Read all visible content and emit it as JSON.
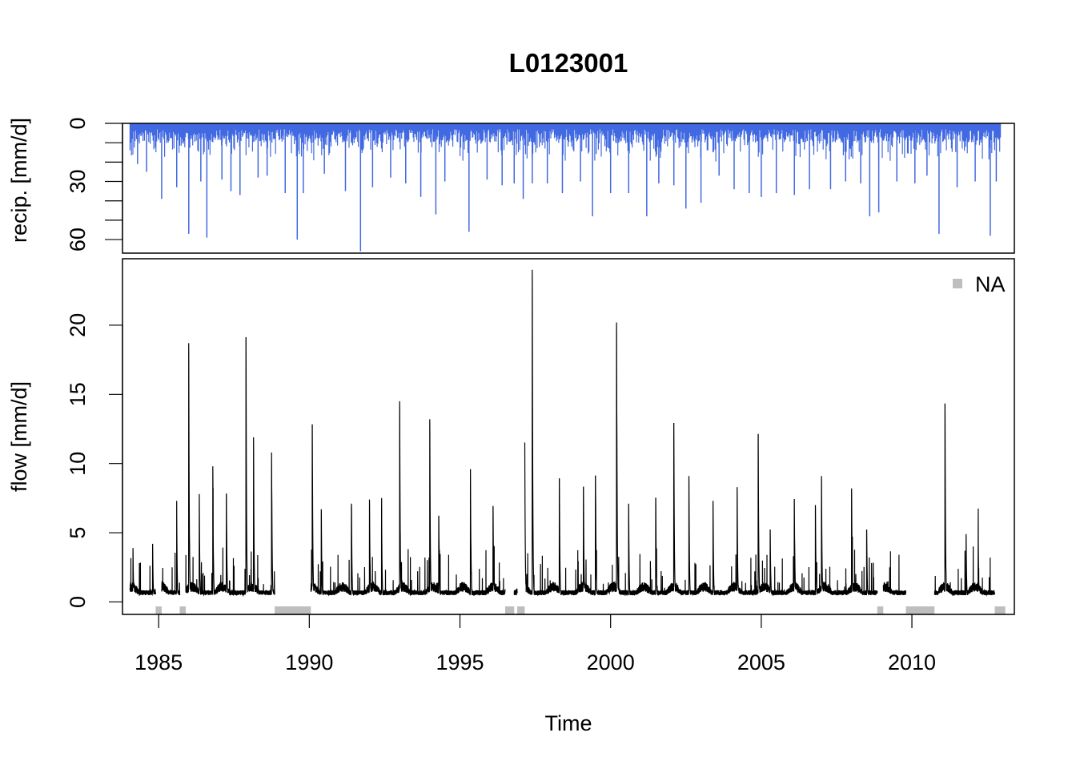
{
  "chart_data": {
    "type": "bar+line",
    "title": "L0123001",
    "xlabel": "Time",
    "x_ticks": [
      1985,
      1990,
      1995,
      2000,
      2005,
      2010
    ],
    "x_range": [
      1983.8,
      2013.4
    ],
    "precipitation": {
      "ylabel": "recip. [mm/d]",
      "y_ticks": [
        0,
        30,
        60
      ],
      "y_minor_ticks": [
        10,
        20,
        40,
        50
      ],
      "y_range_inverted": [
        0,
        67
      ],
      "color": "#4169E1",
      "peaks": [
        {
          "year": 1984.3,
          "value": 21
        },
        {
          "year": 1984.6,
          "value": 25
        },
        {
          "year": 1985.1,
          "value": 39
        },
        {
          "year": 1985.6,
          "value": 33
        },
        {
          "year": 1986.0,
          "value": 57
        },
        {
          "year": 1986.4,
          "value": 30
        },
        {
          "year": 1986.6,
          "value": 59
        },
        {
          "year": 1987.1,
          "value": 29
        },
        {
          "year": 1987.4,
          "value": 35
        },
        {
          "year": 1987.7,
          "value": 37
        },
        {
          "year": 1988.3,
          "value": 28
        },
        {
          "year": 1988.6,
          "value": 27
        },
        {
          "year": 1989.2,
          "value": 36
        },
        {
          "year": 1989.6,
          "value": 60
        },
        {
          "year": 1989.8,
          "value": 36
        },
        {
          "year": 1990.5,
          "value": 26
        },
        {
          "year": 1991.2,
          "value": 35
        },
        {
          "year": 1991.7,
          "value": 66
        },
        {
          "year": 1992.1,
          "value": 33
        },
        {
          "year": 1992.7,
          "value": 28
        },
        {
          "year": 1993.2,
          "value": 31
        },
        {
          "year": 1993.7,
          "value": 38
        },
        {
          "year": 1994.2,
          "value": 47
        },
        {
          "year": 1994.5,
          "value": 30
        },
        {
          "year": 1995.3,
          "value": 56
        },
        {
          "year": 1995.9,
          "value": 29
        },
        {
          "year": 1996.4,
          "value": 32
        },
        {
          "year": 1996.8,
          "value": 31
        },
        {
          "year": 1997.1,
          "value": 39
        },
        {
          "year": 1997.4,
          "value": 31
        },
        {
          "year": 1997.9,
          "value": 31
        },
        {
          "year": 1998.4,
          "value": 36
        },
        {
          "year": 1999.0,
          "value": 30
        },
        {
          "year": 1999.4,
          "value": 48
        },
        {
          "year": 2000.0,
          "value": 36
        },
        {
          "year": 2000.6,
          "value": 36
        },
        {
          "year": 2001.2,
          "value": 48
        },
        {
          "year": 2001.6,
          "value": 31
        },
        {
          "year": 2002.1,
          "value": 32
        },
        {
          "year": 2002.5,
          "value": 44
        },
        {
          "year": 2003.0,
          "value": 41
        },
        {
          "year": 2003.6,
          "value": 27
        },
        {
          "year": 2004.1,
          "value": 34
        },
        {
          "year": 2004.6,
          "value": 36
        },
        {
          "year": 2005.0,
          "value": 38
        },
        {
          "year": 2005.5,
          "value": 36
        },
        {
          "year": 2006.1,
          "value": 37
        },
        {
          "year": 2006.6,
          "value": 34
        },
        {
          "year": 2007.3,
          "value": 34
        },
        {
          "year": 2007.8,
          "value": 30
        },
        {
          "year": 2008.3,
          "value": 31
        },
        {
          "year": 2008.6,
          "value": 48
        },
        {
          "year": 2008.9,
          "value": 46
        },
        {
          "year": 2009.5,
          "value": 30
        },
        {
          "year": 2010.1,
          "value": 31
        },
        {
          "year": 2010.5,
          "value": 27
        },
        {
          "year": 2010.9,
          "value": 57
        },
        {
          "year": 2011.5,
          "value": 33
        },
        {
          "year": 2012.1,
          "value": 30
        },
        {
          "year": 2012.6,
          "value": 58
        },
        {
          "year": 2012.8,
          "value": 30
        }
      ]
    },
    "flow": {
      "ylabel": "flow [mm/d]",
      "y_ticks": [
        0,
        5,
        10,
        15,
        20
      ],
      "y_range": [
        -0.9,
        24.8
      ],
      "color": "#000000",
      "peaks": [
        {
          "year": 1984.15,
          "value": 3.9
        },
        {
          "year": 1984.8,
          "value": 4.2
        },
        {
          "year": 1985.05,
          "value": 6.9
        },
        {
          "year": 1985.6,
          "value": 6.2
        },
        {
          "year": 1986.0,
          "value": 18.7
        },
        {
          "year": 1986.35,
          "value": 7.8
        },
        {
          "year": 1986.8,
          "value": 9.8
        },
        {
          "year": 1987.25,
          "value": 7.8
        },
        {
          "year": 1987.9,
          "value": 19.1
        },
        {
          "year": 1988.15,
          "value": 11.9
        },
        {
          "year": 1988.75,
          "value": 10.8
        },
        {
          "year": 1990.1,
          "value": 12.8
        },
        {
          "year": 1990.4,
          "value": 6.7
        },
        {
          "year": 1991.4,
          "value": 7.1
        },
        {
          "year": 1992.0,
          "value": 7.4
        },
        {
          "year": 1992.4,
          "value": 6.6
        },
        {
          "year": 1993.0,
          "value": 14.5
        },
        {
          "year": 1994.0,
          "value": 13.2
        },
        {
          "year": 1994.3,
          "value": 6.2
        },
        {
          "year": 1995.35,
          "value": 9.6
        },
        {
          "year": 1996.1,
          "value": 6.9
        },
        {
          "year": 1996.6,
          "value": 8.4
        },
        {
          "year": 1997.15,
          "value": 12.5
        },
        {
          "year": 1997.4,
          "value": 24.0
        },
        {
          "year": 1998.3,
          "value": 8.9
        },
        {
          "year": 1999.1,
          "value": 8.3
        },
        {
          "year": 1999.5,
          "value": 9.1
        },
        {
          "year": 2000.2,
          "value": 20.2
        },
        {
          "year": 2000.6,
          "value": 7.1
        },
        {
          "year": 2001.5,
          "value": 7.5
        },
        {
          "year": 2002.1,
          "value": 12.9
        },
        {
          "year": 2002.6,
          "value": 9.1
        },
        {
          "year": 2003.4,
          "value": 7.3
        },
        {
          "year": 2004.2,
          "value": 8.3
        },
        {
          "year": 2004.9,
          "value": 12.1
        },
        {
          "year": 2005.3,
          "value": 5.2
        },
        {
          "year": 2006.1,
          "value": 7.4
        },
        {
          "year": 2006.8,
          "value": 7.0
        },
        {
          "year": 2007.0,
          "value": 9.1
        },
        {
          "year": 2008.0,
          "value": 8.2
        },
        {
          "year": 2008.5,
          "value": 5.2
        },
        {
          "year": 2009.0,
          "value": 4.5
        },
        {
          "year": 2011.1,
          "value": 14.3
        },
        {
          "year": 2011.8,
          "value": 4.9
        },
        {
          "year": 2012.2,
          "value": 5.1
        },
        {
          "year": 2012.9,
          "value": 2.5
        }
      ],
      "na_periods": [
        [
          1984.9,
          1985.1
        ],
        [
          1985.7,
          1985.9
        ],
        [
          1988.85,
          1990.05
        ],
        [
          1996.5,
          1996.8
        ],
        [
          1996.9,
          1997.15
        ],
        [
          2008.85,
          2009.05
        ],
        [
          2009.8,
          2010.75
        ],
        [
          2012.75,
          2013.1
        ]
      ],
      "na_color": "#BEBEBE"
    },
    "legend": {
      "label": "NA",
      "position": "top-right",
      "color": "#BEBEBE"
    },
    "grid": false
  }
}
